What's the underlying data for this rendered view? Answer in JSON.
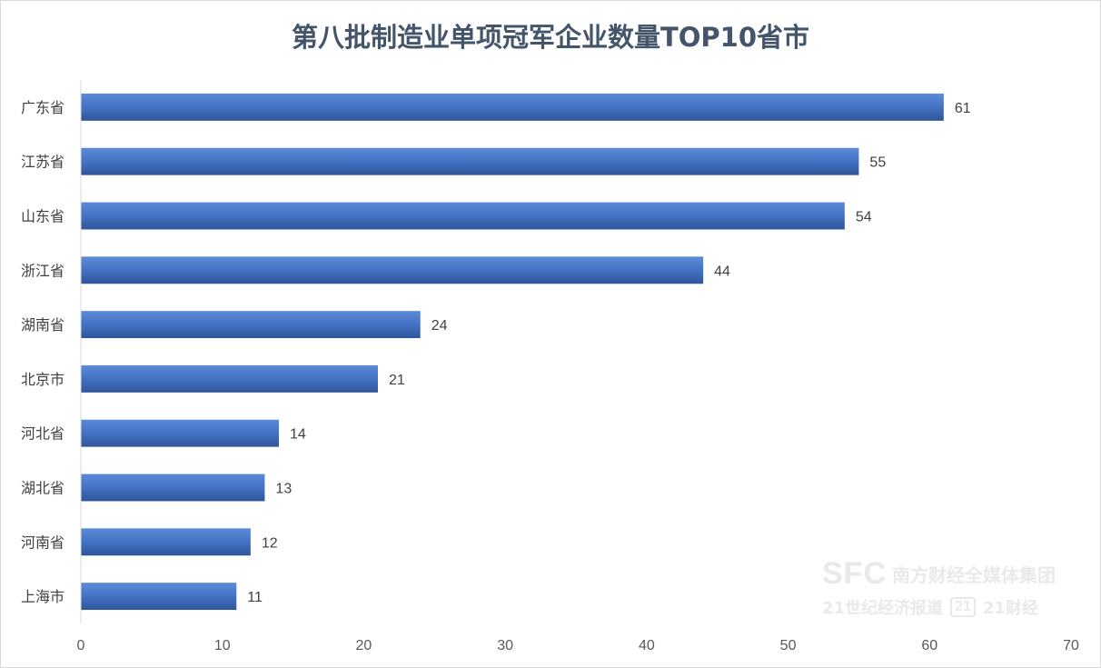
{
  "chart_data": {
    "type": "bar",
    "orientation": "horizontal",
    "title": "第八批制造业单项冠军企业数量TOP10省市",
    "categories": [
      "广东省",
      "江苏省",
      "山东省",
      "浙江省",
      "湖南省",
      "北京市",
      "河北省",
      "湖北省",
      "河南省",
      "上海市"
    ],
    "values": [
      61,
      55,
      54,
      44,
      24,
      21,
      14,
      13,
      12,
      11
    ],
    "xlim": [
      0,
      70
    ],
    "xticks": [
      0,
      10,
      20,
      30,
      40,
      50,
      60,
      70
    ],
    "grid": false,
    "legend": false,
    "bar_color": "#4472c4",
    "bar_color_dark": "#2f5597",
    "title_color": "#44546a"
  },
  "watermark": {
    "logo": "SFC",
    "org": "南方财经全媒体集团",
    "paper": "21世纪经济报道",
    "badge": "21",
    "media": "21财经"
  }
}
